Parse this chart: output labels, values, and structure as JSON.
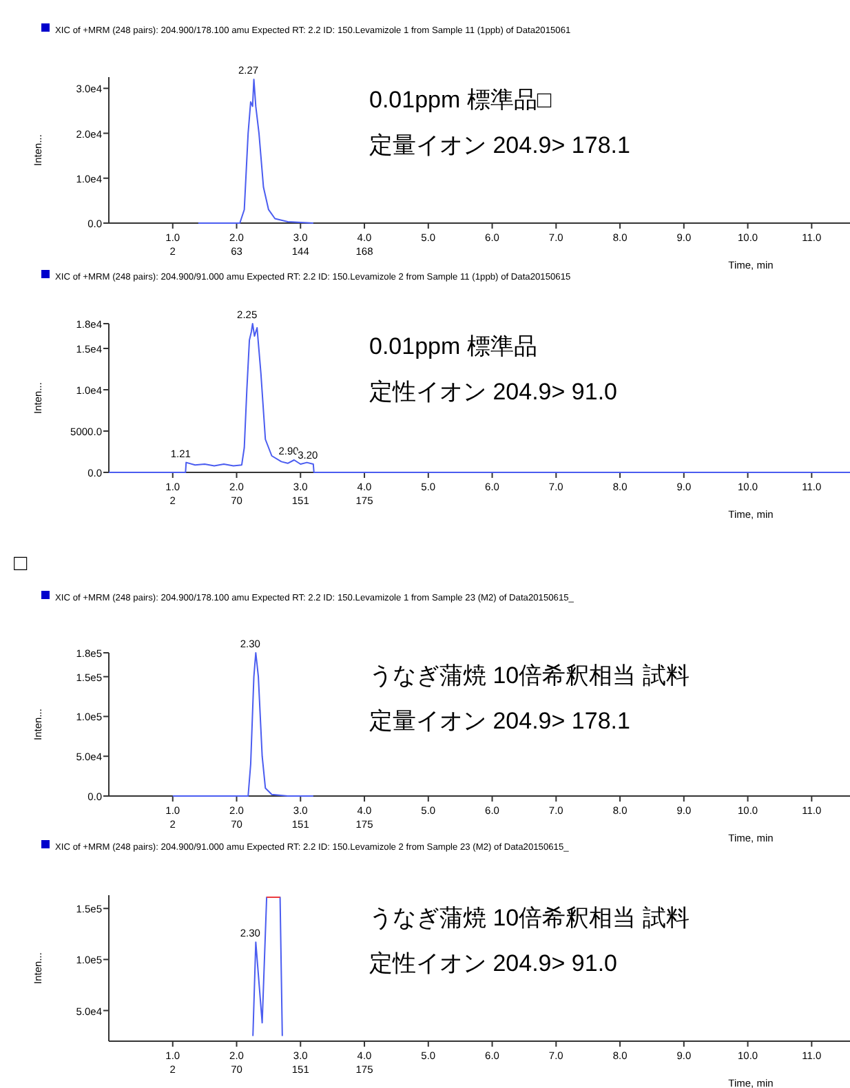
{
  "chart_data": [
    {
      "type": "line",
      "title": "XIC of +MRM (248 pairs): 204.900/178.100 amu Expected RT: 2.2 ID: 150.Levamizole 1 from Sample 11 (1ppb) of Data2015061",
      "xlabel": "Time, min",
      "ylabel": "Inten...",
      "series": [
        {
          "color": "#4a5cf0",
          "x": [
            1.4,
            2.05,
            2.12,
            2.18,
            2.22,
            2.25,
            2.27,
            2.3,
            2.35,
            2.42,
            2.5,
            2.6,
            2.8,
            3.2
          ],
          "values": [
            0,
            0,
            3000,
            20000,
            27000,
            26000,
            32000,
            26000,
            20000,
            8000,
            3000,
            1000,
            300,
            0
          ]
        }
      ],
      "xlim": [
        0,
        11.6
      ],
      "xticks": [
        {
          "value": 1,
          "label": "1.0"
        },
        {
          "value": 2,
          "label": "2.0"
        },
        {
          "value": 3,
          "label": "3.0"
        },
        {
          "value": 4,
          "label": "4.0"
        },
        {
          "value": 5,
          "label": "5.0"
        },
        {
          "value": 6,
          "label": "6.0"
        },
        {
          "value": 7,
          "label": "7.0"
        },
        {
          "value": 8,
          "label": "8.0"
        },
        {
          "value": 9,
          "label": "9.0"
        },
        {
          "value": 10,
          "label": "10.0"
        },
        {
          "value": 11,
          "label": "11.0"
        }
      ],
      "ylim": [
        0,
        32500
      ],
      "yticks": [
        {
          "value": 0,
          "label": "0.0"
        },
        {
          "value": 10000,
          "label": "1.0e4"
        },
        {
          "value": 20000,
          "label": "2.0e4"
        },
        {
          "value": 30000,
          "label": "3.0e4"
        }
      ],
      "annotations": [
        "2",
        "63",
        "144",
        "168",
        {
          "text": "2.27",
          "x": 2.27,
          "y": 32000
        },
        "0.01ppm 標準品□",
        "定量イオン 204.9> 178.1"
      ]
    },
    {
      "type": "line",
      "title": "XIC of +MRM (248 pairs): 204.900/91.000 amu Expected RT: 2.2 ID: 150.Levamizole 2 from Sample 11 (1ppb) of Data20150615",
      "xlabel": "Time, min",
      "ylabel": "Inten...",
      "series": [
        {
          "color": "#4a5cf0",
          "x": [
            0,
            1.2,
            1.21,
            1.35,
            1.5,
            1.65,
            1.8,
            1.95,
            2.08,
            2.12,
            2.16,
            2.2,
            2.23,
            2.25,
            2.28,
            2.32,
            2.38,
            2.45,
            2.55,
            2.7,
            2.8,
            2.9,
            3.0,
            3.1,
            3.2,
            3.21,
            11.6
          ],
          "values": [
            0,
            0,
            1200,
            900,
            1000,
            800,
            1000,
            800,
            900,
            3000,
            10000,
            16000,
            17000,
            18000,
            16500,
            17500,
            12000,
            4000,
            2000,
            1300,
            1100,
            1500,
            1000,
            1200,
            1000,
            0,
            0
          ]
        }
      ],
      "xlim": [
        0,
        11.6
      ],
      "xticks": [
        {
          "value": 1,
          "label": "1.0"
        },
        {
          "value": 2,
          "label": "2.0"
        },
        {
          "value": 3,
          "label": "3.0"
        },
        {
          "value": 4,
          "label": "4.0"
        },
        {
          "value": 5,
          "label": "5.0"
        },
        {
          "value": 6,
          "label": "6.0"
        },
        {
          "value": 7,
          "label": "7.0"
        },
        {
          "value": 8,
          "label": "8.0"
        },
        {
          "value": 9,
          "label": "9.0"
        },
        {
          "value": 10,
          "label": "10.0"
        },
        {
          "value": 11,
          "label": "11.0"
        }
      ],
      "ylim": [
        0,
        18000
      ],
      "yticks": [
        {
          "value": 0,
          "label": "0.0"
        },
        {
          "value": 5000,
          "label": "5000.0"
        },
        {
          "value": 10000,
          "label": "1.0e4"
        },
        {
          "value": 15000,
          "label": "1.5e4"
        },
        {
          "value": 18000,
          "label": "1.8e4"
        }
      ],
      "annotations": [
        "2",
        "70",
        "151",
        "175",
        {
          "text": "1.21",
          "x": 1.21,
          "y": 1200
        },
        {
          "text": "2.25",
          "x": 2.25,
          "y": 18000
        },
        {
          "text": "2.90",
          "x": 2.9,
          "y": 1500
        },
        {
          "text": "3.20",
          "x": 3.2,
          "y": 1000
        },
        "0.01ppm 標準品",
        "定性イオン 204.9> 91.0"
      ]
    },
    {
      "type": "line",
      "title": "XIC of +MRM (248 pairs): 204.900/178.100 amu Expected RT: 2.2 ID: 150.Levamizole 1 from Sample 23 (M2) of Data20150615_",
      "xlabel": "Time, min",
      "ylabel": "Inten...",
      "series": [
        {
          "color": "#4a5cf0",
          "x": [
            1.0,
            2.18,
            2.22,
            2.27,
            2.3,
            2.34,
            2.4,
            2.45,
            2.55,
            2.8,
            3.2
          ],
          "values": [
            0,
            0,
            40000,
            150000,
            180000,
            150000,
            50000,
            10000,
            2000,
            0,
            0
          ]
        }
      ],
      "xlim": [
        0,
        11.6
      ],
      "xticks": [
        {
          "value": 1,
          "label": "1.0"
        },
        {
          "value": 2,
          "label": "2.0"
        },
        {
          "value": 3,
          "label": "3.0"
        },
        {
          "value": 4,
          "label": "4.0"
        },
        {
          "value": 5,
          "label": "5.0"
        },
        {
          "value": 6,
          "label": "6.0"
        },
        {
          "value": 7,
          "label": "7.0"
        },
        {
          "value": 8,
          "label": "8.0"
        },
        {
          "value": 9,
          "label": "9.0"
        },
        {
          "value": 10,
          "label": "10.0"
        },
        {
          "value": 11,
          "label": "11.0"
        }
      ],
      "ylim": [
        0,
        180000
      ],
      "yticks": [
        {
          "value": 0,
          "label": "0.0"
        },
        {
          "value": 50000,
          "label": "5.0e4"
        },
        {
          "value": 100000,
          "label": "1.0e5"
        },
        {
          "value": 150000,
          "label": "1.5e5"
        },
        {
          "value": 180000,
          "label": "1.8e5"
        }
      ],
      "annotations": [
        "□",
        "2",
        "70",
        "151",
        "175",
        {
          "text": "2.30",
          "x": 2.3,
          "y": 180000
        },
        "うなぎ蒲焼 10倍希釈相当 試料",
        "定量イオン 204.9> 178.1"
      ]
    },
    {
      "type": "line",
      "title": "XIC of +MRM (248 pairs): 204.900/91.000 amu Expected RT: 2.2 ID: 150.Levamizole 2 from Sample 23 (M2) of Data20150615_",
      "xlabel": "Time, min",
      "ylabel": "Inten...",
      "series": [
        {
          "color": "#4a5cf0",
          "x": [
            2.255,
            2.3,
            2.4,
            2.47,
            2.68,
            2.715
          ],
          "values": [
            25000,
            117000,
            38000,
            161000,
            161000,
            25000
          ]
        },
        {
          "color": "#f03c3c",
          "x": [
            2.47,
            2.68
          ],
          "values": [
            161000,
            161000
          ]
        }
      ],
      "xlim": [
        0,
        11.6
      ],
      "xticks": [
        {
          "value": 1,
          "label": "1.0"
        },
        {
          "value": 2,
          "label": "2.0"
        },
        {
          "value": 3,
          "label": "3.0"
        },
        {
          "value": 4,
          "label": "4.0"
        },
        {
          "value": 5,
          "label": "5.0"
        },
        {
          "value": 6,
          "label": "6.0"
        },
        {
          "value": 7,
          "label": "7.0"
        },
        {
          "value": 8,
          "label": "8.0"
        },
        {
          "value": 9,
          "label": "9.0"
        },
        {
          "value": 10,
          "label": "10.0"
        },
        {
          "value": 11,
          "label": "11.0"
        }
      ],
      "ylim": [
        20000,
        163000
      ],
      "yticks": [
        {
          "value": 50000,
          "label": "5.0e4"
        },
        {
          "value": 100000,
          "label": "1.0e5"
        },
        {
          "value": 150000,
          "label": "1.5e5"
        }
      ],
      "annotations": [
        "2",
        "70",
        "151",
        "175",
        {
          "text": "2.30",
          "x": 2.3,
          "y": 117000
        },
        "うなぎ蒲焼 10倍希釈相当 試料",
        "定性イオン 204.9> 91.0"
      ]
    }
  ]
}
